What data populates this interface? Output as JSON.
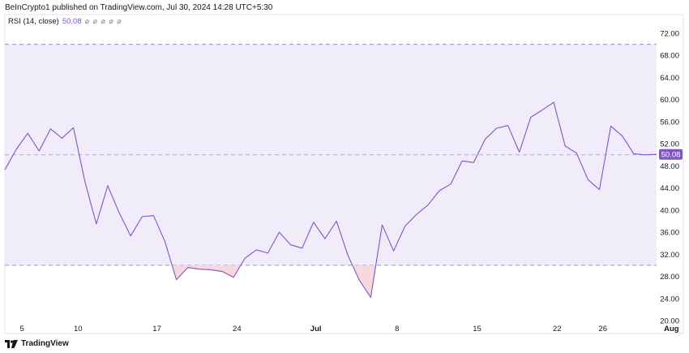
{
  "header": {
    "published": "BeInCrypto1 published on TradingView.com, Jul 30, 2024 14:28 UTC+5:30"
  },
  "legend": {
    "indicator": "RSI (14, close)",
    "value": "50.08",
    "icons": "⌀ ⌀ ⌀ ⌀ ⌀"
  },
  "footer": {
    "brand": "TradingView",
    "logo_icon": "tradingview-logo-icon"
  },
  "colors": {
    "line": "#7e57c2",
    "band_fill": "#f0ecfa",
    "oversold_fill": "#f9d7df",
    "dashed": "#9b8fc9",
    "price_label_bg": "#7e57c2"
  },
  "chart_data": {
    "type": "line",
    "series": [
      {
        "values": [
          47.3,
          51.0,
          53.9,
          50.7,
          54.7,
          53.0,
          54.9,
          45.2,
          37.5,
          44.4,
          39.5,
          35.3,
          38.8,
          39.0,
          34.3,
          27.4,
          29.6,
          29.3,
          29.2,
          28.9,
          27.8,
          31.3,
          32.8,
          32.2,
          36.0,
          33.7,
          33.1,
          37.8,
          34.8,
          38.0,
          31.8,
          27.3,
          24.2,
          37.3,
          32.6,
          37.1,
          39.2,
          40.9,
          43.5,
          44.7,
          48.9,
          48.6,
          52.8,
          54.8,
          55.3,
          50.5,
          56.8,
          58.1,
          59.5,
          51.6,
          50.3,
          45.5,
          43.7,
          55.2,
          53.4,
          50.2,
          50.0,
          50.08
        ]
      }
    ],
    "x_ticks": [
      {
        "label": "5",
        "index": 1.5
      },
      {
        "label": "10",
        "index": 6.4
      },
      {
        "label": "17",
        "index": 13.3
      },
      {
        "label": "24",
        "index": 20.3
      },
      {
        "label": "Jul",
        "index": 27.2
      },
      {
        "label": "8",
        "index": 34.3
      },
      {
        "label": "15",
        "index": 41.3
      },
      {
        "label": "22",
        "index": 48.3
      },
      {
        "label": "26",
        "index": 52.3
      },
      {
        "label": "Aug",
        "index": 58.3
      }
    ],
    "y_ticks": [
      "72.00",
      "68.00",
      "64.00",
      "60.00",
      "56.00",
      "52.00",
      "48.00",
      "44.00",
      "40.00",
      "36.00",
      "32.00",
      "28.00",
      "24.00",
      "20.00"
    ],
    "ylim": [
      20,
      73
    ],
    "band": {
      "upper": 70,
      "lower": 30,
      "middle": 50
    },
    "current_value_label": "50.08",
    "grid": false
  }
}
